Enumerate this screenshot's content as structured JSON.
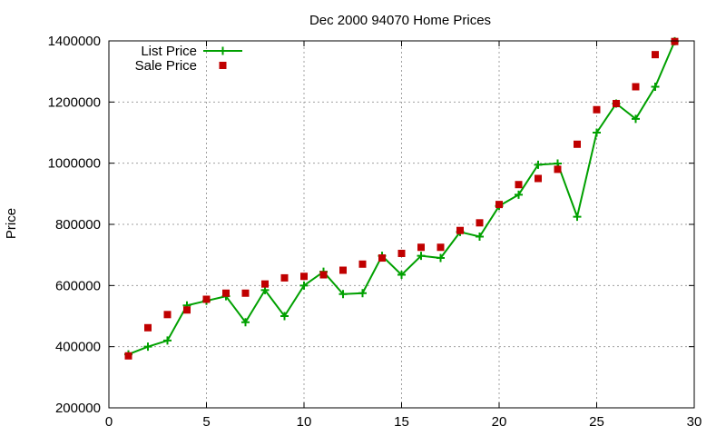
{
  "chart_data": {
    "type": "line",
    "title": "Dec 2000 94070 Home Prices",
    "xlabel": "",
    "ylabel": "Price",
    "xlim": [
      0,
      30
    ],
    "ylim": [
      200000,
      1400000
    ],
    "xticks": [
      0,
      5,
      10,
      15,
      20,
      25,
      30
    ],
    "yticks": [
      200000,
      400000,
      600000,
      800000,
      1000000,
      1200000,
      1400000
    ],
    "grid": true,
    "legend_position": "top-left",
    "series": [
      {
        "name": "List Price",
        "style": "line-with-plus-markers",
        "color": "#00a000",
        "x": [
          1,
          2,
          3,
          4,
          5,
          6,
          7,
          8,
          9,
          10,
          11,
          12,
          13,
          14,
          15,
          16,
          17,
          18,
          19,
          20,
          21,
          22,
          23,
          24,
          25,
          26,
          27,
          28,
          29
        ],
        "y": [
          375000,
          400000,
          420000,
          535000,
          550000,
          565000,
          480000,
          585000,
          500000,
          600000,
          645000,
          572000,
          575000,
          697000,
          635000,
          697000,
          690000,
          775000,
          760000,
          860000,
          897000,
          995000,
          999000,
          825000,
          1100000,
          1195000,
          1145000,
          1250000,
          1399000
        ]
      },
      {
        "name": "Sale Price",
        "style": "square-markers",
        "color": "#c00000",
        "x": [
          1,
          2,
          3,
          4,
          5,
          6,
          7,
          8,
          9,
          10,
          11,
          12,
          13,
          14,
          15,
          16,
          17,
          18,
          19,
          20,
          21,
          22,
          23,
          24,
          25,
          26,
          27,
          28,
          29
        ],
        "y": [
          370000,
          462000,
          505000,
          520000,
          555000,
          575000,
          575000,
          605000,
          625000,
          630000,
          635000,
          650000,
          670000,
          690000,
          705000,
          725000,
          725000,
          780000,
          805000,
          865000,
          930000,
          950000,
          980000,
          1062000,
          1175000,
          1195000,
          1250000,
          1355000,
          1398000
        ]
      }
    ]
  }
}
